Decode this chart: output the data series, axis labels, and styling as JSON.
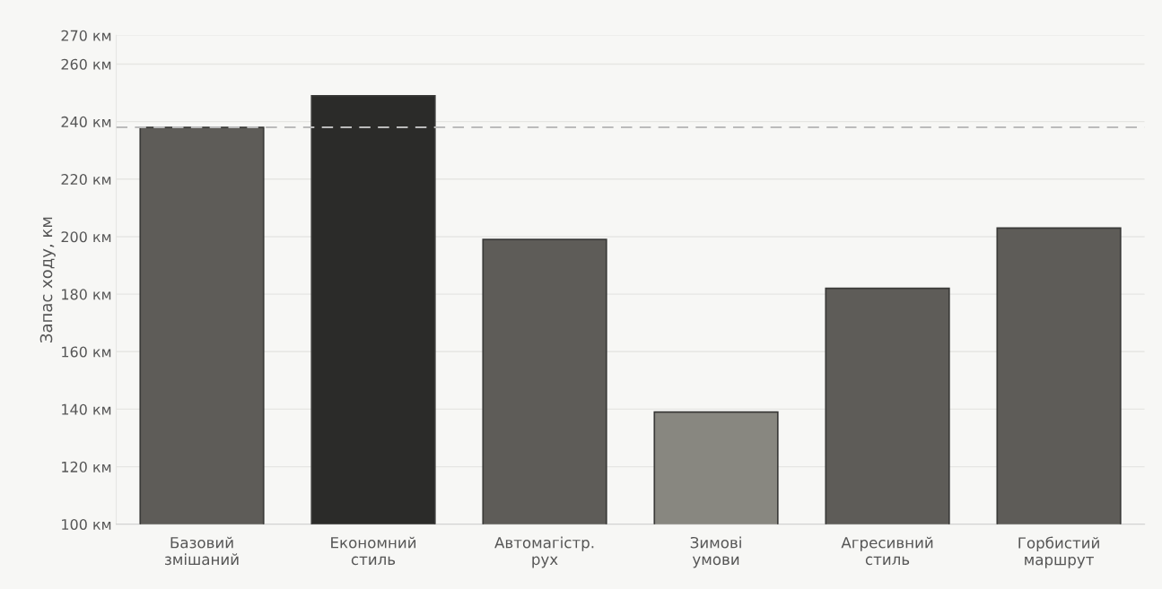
{
  "chart_data": {
    "type": "bar",
    "ylabel": "Запас ходу, км",
    "categories": [
      "Базовий\nзмішаний",
      "Економний\nстиль",
      "Автомагістр.\nрух",
      "Зимові\nумови",
      "Агресивний\nстиль",
      "Горбистий\nмаршрут"
    ],
    "values": [
      238,
      249,
      199,
      139,
      182,
      203
    ],
    "colors": [
      "#5e5c58",
      "#2b2b29",
      "#5e5c58",
      "#888780",
      "#5e5c58",
      "#5e5c58"
    ],
    "ylim": [
      100,
      270
    ],
    "yticks": [
      {
        "value": 100,
        "label": "100 км"
      },
      {
        "value": 120,
        "label": "120 км"
      },
      {
        "value": 140,
        "label": "140 км"
      },
      {
        "value": 160,
        "label": "160 км"
      },
      {
        "value": 180,
        "label": "180 км"
      },
      {
        "value": 200,
        "label": "200 км"
      },
      {
        "value": 220,
        "label": "220 км"
      },
      {
        "value": 240,
        "label": "240 км"
      },
      {
        "value": 260,
        "label": "260 км"
      },
      {
        "value": 270,
        "label": "270 км"
      }
    ],
    "ref_lines": [
      {
        "axis": "y",
        "value": 238,
        "label": null,
        "color": "#bbbbbb",
        "line_style": "dashed"
      }
    ],
    "grid": "y",
    "legend": false
  }
}
